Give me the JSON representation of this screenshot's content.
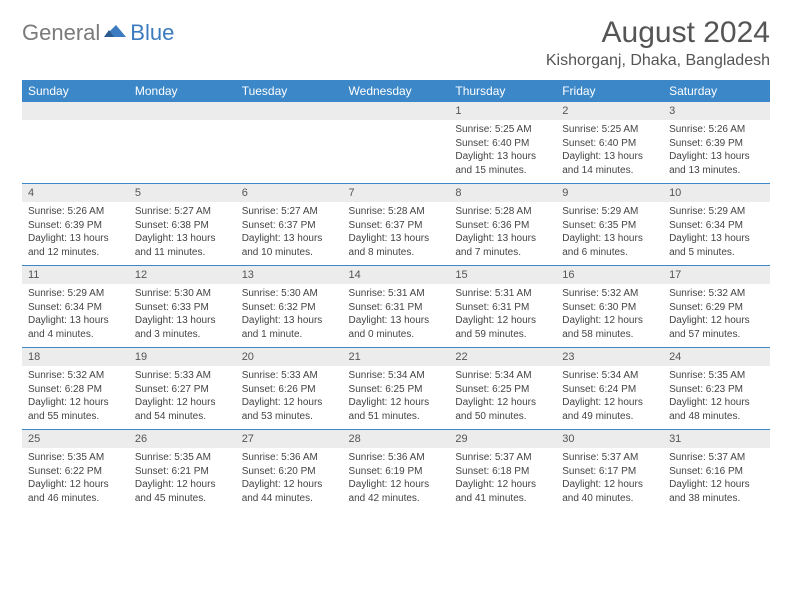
{
  "logo": {
    "general": "General",
    "blue": "Blue"
  },
  "title": "August 2024",
  "location": "Kishorganj, Dhaka, Bangladesh",
  "headers": [
    "Sunday",
    "Monday",
    "Tuesday",
    "Wednesday",
    "Thursday",
    "Friday",
    "Saturday"
  ],
  "colors": {
    "headerBg": "#3b87c8",
    "headerText": "#ffffff",
    "dayNumBg": "#ececec",
    "border": "#3b87c8",
    "text": "#444444",
    "logoBlue": "#3c7bbf",
    "logoGray": "#7a7a7a"
  },
  "weeks": [
    [
      {
        "n": "",
        "sr": "",
        "ss": "",
        "dl": ""
      },
      {
        "n": "",
        "sr": "",
        "ss": "",
        "dl": ""
      },
      {
        "n": "",
        "sr": "",
        "ss": "",
        "dl": ""
      },
      {
        "n": "",
        "sr": "",
        "ss": "",
        "dl": ""
      },
      {
        "n": "1",
        "sr": "Sunrise: 5:25 AM",
        "ss": "Sunset: 6:40 PM",
        "dl": "Daylight: 13 hours and 15 minutes."
      },
      {
        "n": "2",
        "sr": "Sunrise: 5:25 AM",
        "ss": "Sunset: 6:40 PM",
        "dl": "Daylight: 13 hours and 14 minutes."
      },
      {
        "n": "3",
        "sr": "Sunrise: 5:26 AM",
        "ss": "Sunset: 6:39 PM",
        "dl": "Daylight: 13 hours and 13 minutes."
      }
    ],
    [
      {
        "n": "4",
        "sr": "Sunrise: 5:26 AM",
        "ss": "Sunset: 6:39 PM",
        "dl": "Daylight: 13 hours and 12 minutes."
      },
      {
        "n": "5",
        "sr": "Sunrise: 5:27 AM",
        "ss": "Sunset: 6:38 PM",
        "dl": "Daylight: 13 hours and 11 minutes."
      },
      {
        "n": "6",
        "sr": "Sunrise: 5:27 AM",
        "ss": "Sunset: 6:37 PM",
        "dl": "Daylight: 13 hours and 10 minutes."
      },
      {
        "n": "7",
        "sr": "Sunrise: 5:28 AM",
        "ss": "Sunset: 6:37 PM",
        "dl": "Daylight: 13 hours and 8 minutes."
      },
      {
        "n": "8",
        "sr": "Sunrise: 5:28 AM",
        "ss": "Sunset: 6:36 PM",
        "dl": "Daylight: 13 hours and 7 minutes."
      },
      {
        "n": "9",
        "sr": "Sunrise: 5:29 AM",
        "ss": "Sunset: 6:35 PM",
        "dl": "Daylight: 13 hours and 6 minutes."
      },
      {
        "n": "10",
        "sr": "Sunrise: 5:29 AM",
        "ss": "Sunset: 6:34 PM",
        "dl": "Daylight: 13 hours and 5 minutes."
      }
    ],
    [
      {
        "n": "11",
        "sr": "Sunrise: 5:29 AM",
        "ss": "Sunset: 6:34 PM",
        "dl": "Daylight: 13 hours and 4 minutes."
      },
      {
        "n": "12",
        "sr": "Sunrise: 5:30 AM",
        "ss": "Sunset: 6:33 PM",
        "dl": "Daylight: 13 hours and 3 minutes."
      },
      {
        "n": "13",
        "sr": "Sunrise: 5:30 AM",
        "ss": "Sunset: 6:32 PM",
        "dl": "Daylight: 13 hours and 1 minute."
      },
      {
        "n": "14",
        "sr": "Sunrise: 5:31 AM",
        "ss": "Sunset: 6:31 PM",
        "dl": "Daylight: 13 hours and 0 minutes."
      },
      {
        "n": "15",
        "sr": "Sunrise: 5:31 AM",
        "ss": "Sunset: 6:31 PM",
        "dl": "Daylight: 12 hours and 59 minutes."
      },
      {
        "n": "16",
        "sr": "Sunrise: 5:32 AM",
        "ss": "Sunset: 6:30 PM",
        "dl": "Daylight: 12 hours and 58 minutes."
      },
      {
        "n": "17",
        "sr": "Sunrise: 5:32 AM",
        "ss": "Sunset: 6:29 PM",
        "dl": "Daylight: 12 hours and 57 minutes."
      }
    ],
    [
      {
        "n": "18",
        "sr": "Sunrise: 5:32 AM",
        "ss": "Sunset: 6:28 PM",
        "dl": "Daylight: 12 hours and 55 minutes."
      },
      {
        "n": "19",
        "sr": "Sunrise: 5:33 AM",
        "ss": "Sunset: 6:27 PM",
        "dl": "Daylight: 12 hours and 54 minutes."
      },
      {
        "n": "20",
        "sr": "Sunrise: 5:33 AM",
        "ss": "Sunset: 6:26 PM",
        "dl": "Daylight: 12 hours and 53 minutes."
      },
      {
        "n": "21",
        "sr": "Sunrise: 5:34 AM",
        "ss": "Sunset: 6:25 PM",
        "dl": "Daylight: 12 hours and 51 minutes."
      },
      {
        "n": "22",
        "sr": "Sunrise: 5:34 AM",
        "ss": "Sunset: 6:25 PM",
        "dl": "Daylight: 12 hours and 50 minutes."
      },
      {
        "n": "23",
        "sr": "Sunrise: 5:34 AM",
        "ss": "Sunset: 6:24 PM",
        "dl": "Daylight: 12 hours and 49 minutes."
      },
      {
        "n": "24",
        "sr": "Sunrise: 5:35 AM",
        "ss": "Sunset: 6:23 PM",
        "dl": "Daylight: 12 hours and 48 minutes."
      }
    ],
    [
      {
        "n": "25",
        "sr": "Sunrise: 5:35 AM",
        "ss": "Sunset: 6:22 PM",
        "dl": "Daylight: 12 hours and 46 minutes."
      },
      {
        "n": "26",
        "sr": "Sunrise: 5:35 AM",
        "ss": "Sunset: 6:21 PM",
        "dl": "Daylight: 12 hours and 45 minutes."
      },
      {
        "n": "27",
        "sr": "Sunrise: 5:36 AM",
        "ss": "Sunset: 6:20 PM",
        "dl": "Daylight: 12 hours and 44 minutes."
      },
      {
        "n": "28",
        "sr": "Sunrise: 5:36 AM",
        "ss": "Sunset: 6:19 PM",
        "dl": "Daylight: 12 hours and 42 minutes."
      },
      {
        "n": "29",
        "sr": "Sunrise: 5:37 AM",
        "ss": "Sunset: 6:18 PM",
        "dl": "Daylight: 12 hours and 41 minutes."
      },
      {
        "n": "30",
        "sr": "Sunrise: 5:37 AM",
        "ss": "Sunset: 6:17 PM",
        "dl": "Daylight: 12 hours and 40 minutes."
      },
      {
        "n": "31",
        "sr": "Sunrise: 5:37 AM",
        "ss": "Sunset: 6:16 PM",
        "dl": "Daylight: 12 hours and 38 minutes."
      }
    ]
  ]
}
